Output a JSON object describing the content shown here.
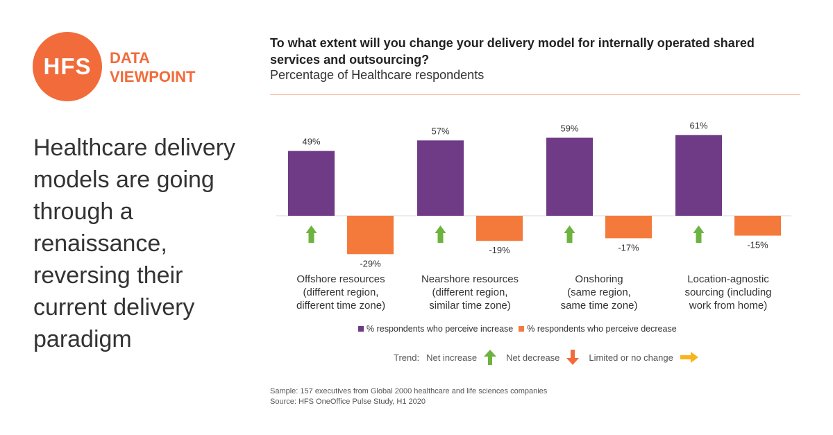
{
  "logo": {
    "mark": "HFS",
    "line1": "DATA",
    "line2": "VIEWPOINT",
    "color": "#f26b3a"
  },
  "headline": "Healthcare delivery models are going through a renaissance, reversing their current delivery paradigm",
  "chart_title": "To what extent will you change your delivery model for internally operated shared services and outsourcing?",
  "chart_subtitle": "Percentage of Healthcare respondents",
  "chart_data": {
    "type": "bar",
    "categories": [
      [
        "Offshore resources",
        "(different region,",
        "different time zone)"
      ],
      [
        "Nearshore resources",
        "(different region,",
        "similar time zone)"
      ],
      [
        "Onshoring",
        "(same region,",
        "same time zone)"
      ],
      [
        "Location-agnostic",
        "sourcing (including",
        "work from home)"
      ]
    ],
    "series": [
      {
        "name": "% respondents who perceive increase",
        "values": [
          49,
          57,
          59,
          61
        ],
        "color": "#6f3a86"
      },
      {
        "name": "% respondents who perceive decrease",
        "values": [
          -29,
          -19,
          -17,
          -15
        ],
        "color": "#f47a3c"
      }
    ],
    "data_labels": [
      [
        "49%",
        "57%",
        "59%",
        "61%"
      ],
      [
        "-29%",
        "-19%",
        "-17%",
        "-15%"
      ]
    ],
    "trend": [
      "net-increase",
      "net-increase",
      "net-increase",
      "net-increase"
    ]
  },
  "legend": {
    "increase": "% respondents who perceive increase",
    "decrease": "% respondents who perceive decrease"
  },
  "trend_legend": {
    "label": "Trend:",
    "increase": "Net increase",
    "decrease": "Net decrease",
    "nochange": "Limited or no change",
    "colors": {
      "increase": "#6db33f",
      "decrease": "#f26b3a",
      "nochange": "#f8b41a"
    }
  },
  "footnotes": {
    "sample": "Sample: 157 executives from Global 2000 healthcare and life sciences companies",
    "source": "Source: HFS OneOffice Pulse Study, H1 2020"
  }
}
